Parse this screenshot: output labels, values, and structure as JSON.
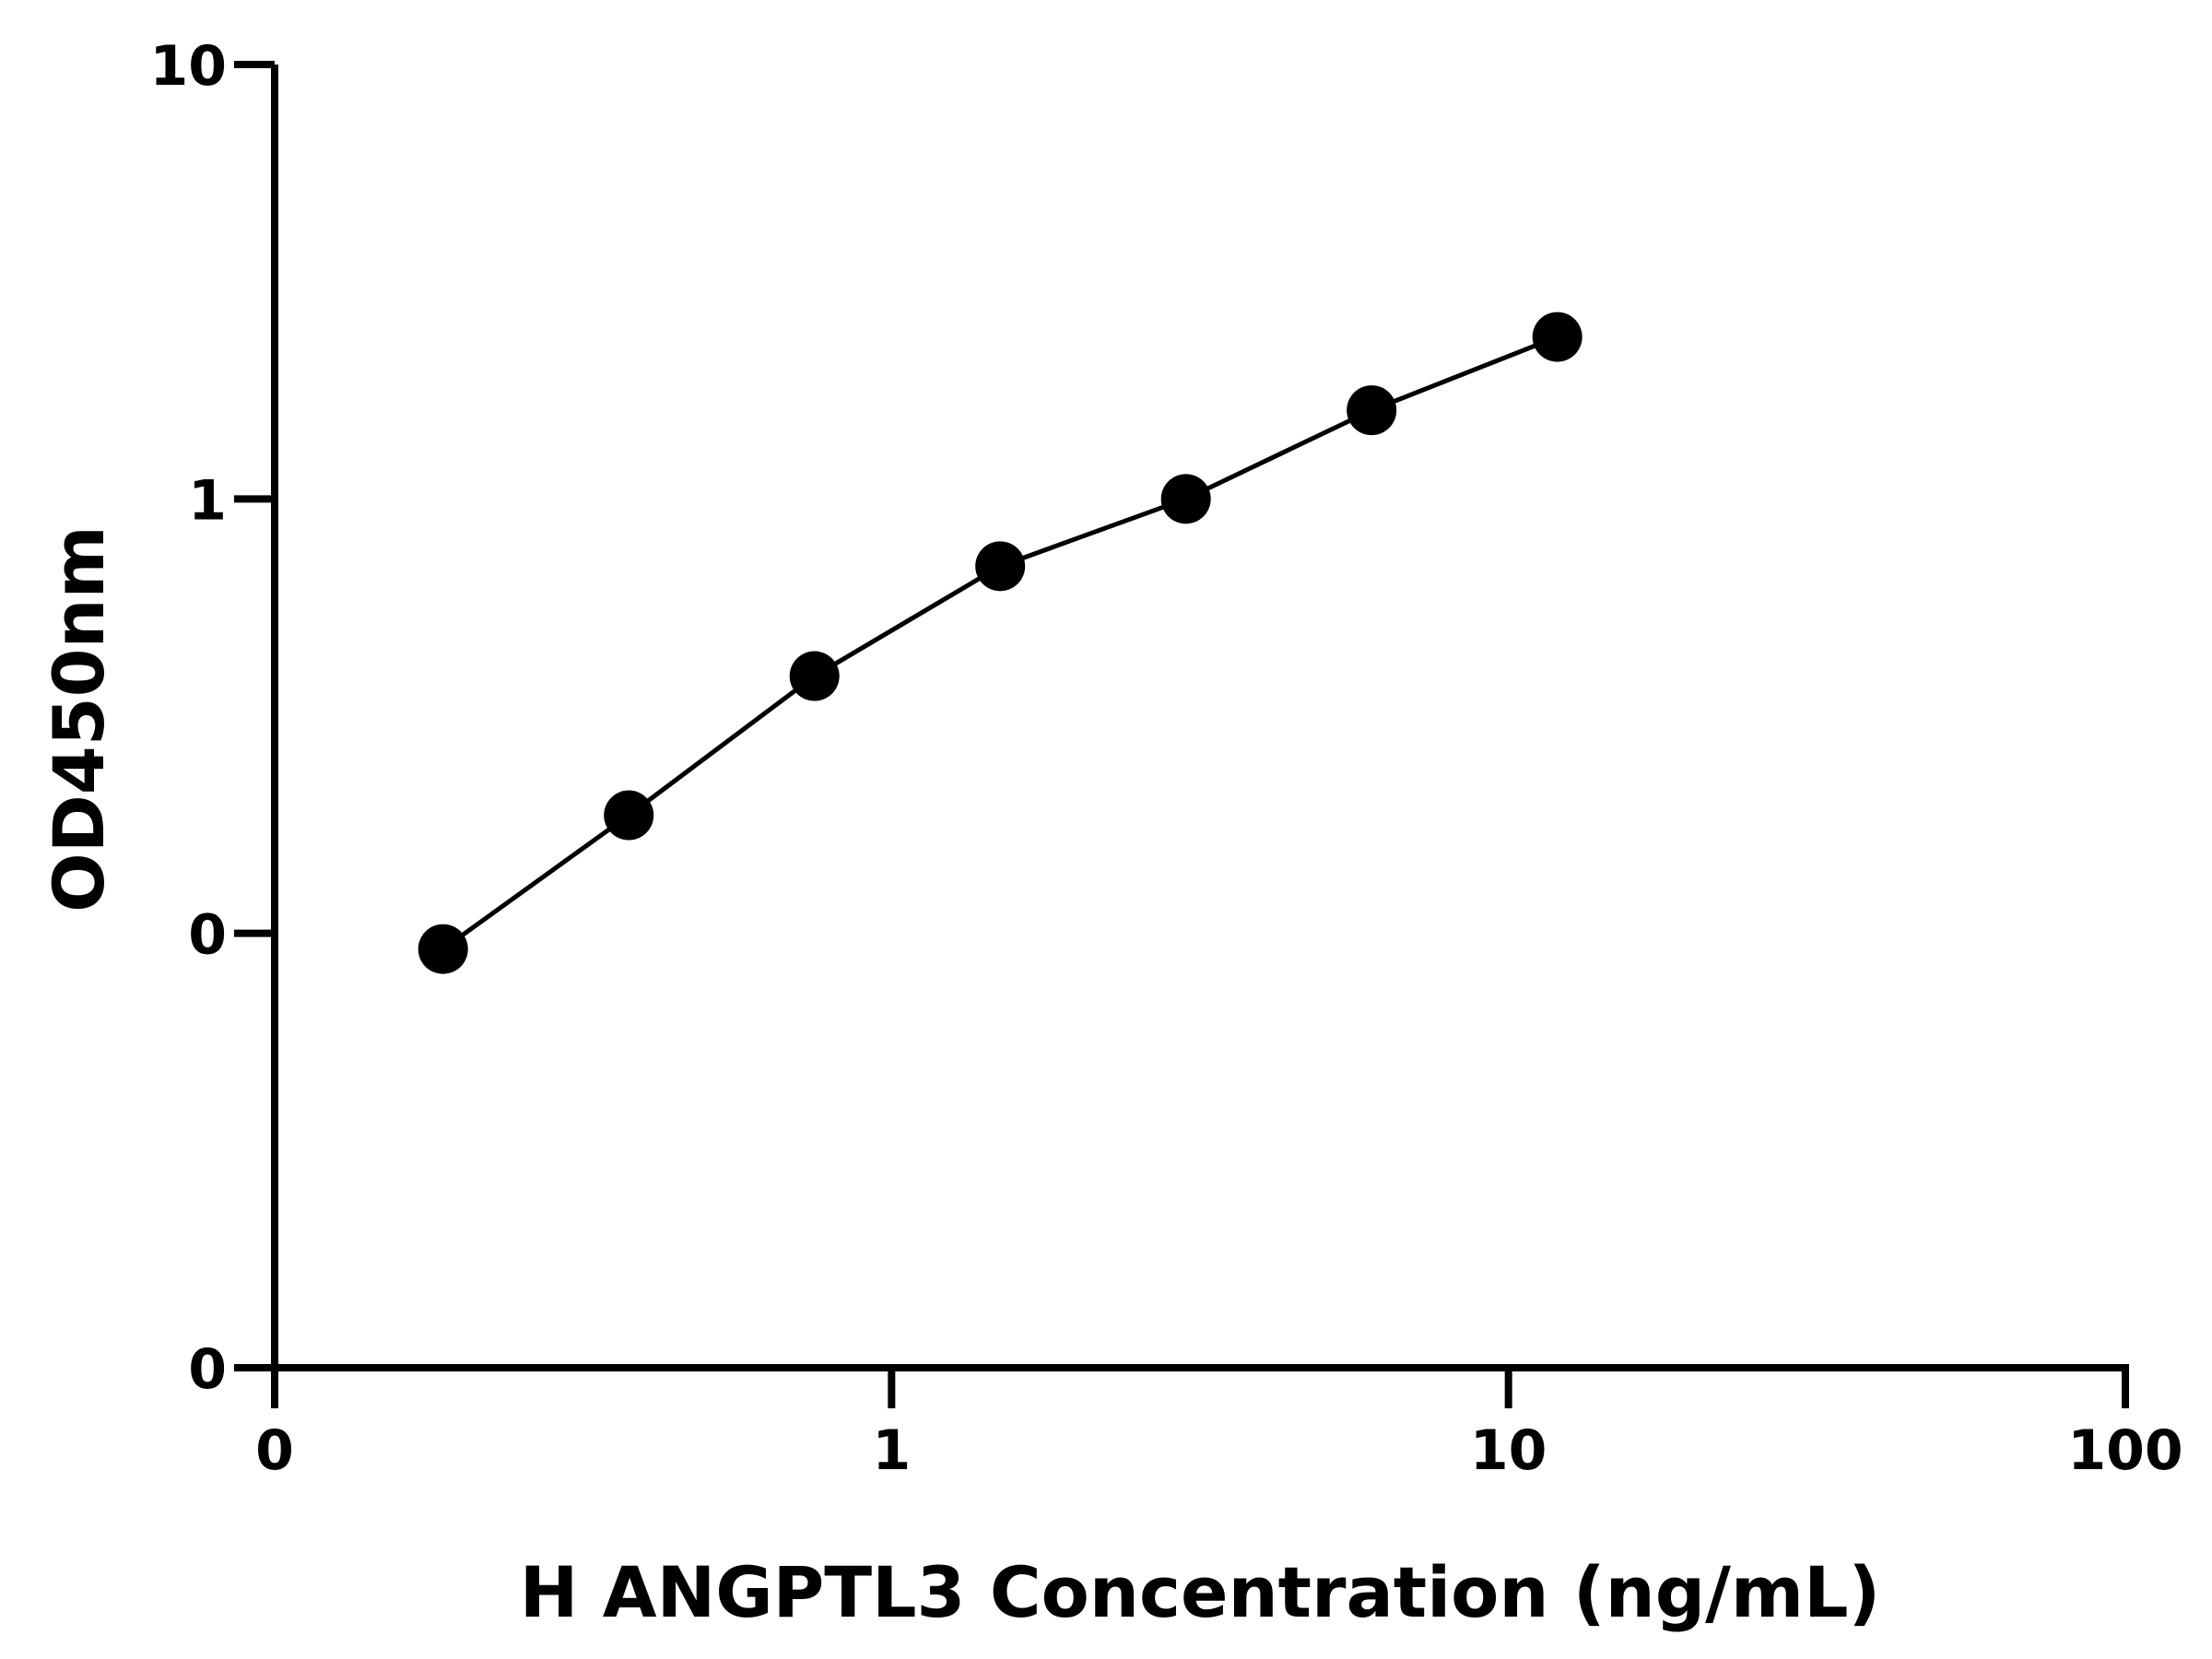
{
  "chart_data": {
    "type": "scatter",
    "x_label": "H ANGPTL3 Concentration (ng/mL)",
    "y_label": "OD450nm",
    "x_log": true,
    "y_log": true,
    "xlim": [
      0.1,
      100
    ],
    "xticks": [
      {
        "value": 0.1,
        "label": "0"
      },
      1,
      10,
      100
    ],
    "ylim": [
      0.01,
      10
    ],
    "yticks": [
      {
        "value": 0.01,
        "label": "0"
      },
      {
        "value": 0.1,
        "label": "0"
      },
      1,
      10
    ],
    "series": [
      {
        "color": "#000000",
        "x": [
          0.1875,
          0.375,
          0.75,
          1.5,
          3,
          6,
          12
        ],
        "values": [
          0.092,
          0.187,
          0.391,
          0.7,
          1.0,
          1.6,
          2.36
        ]
      }
    ]
  }
}
